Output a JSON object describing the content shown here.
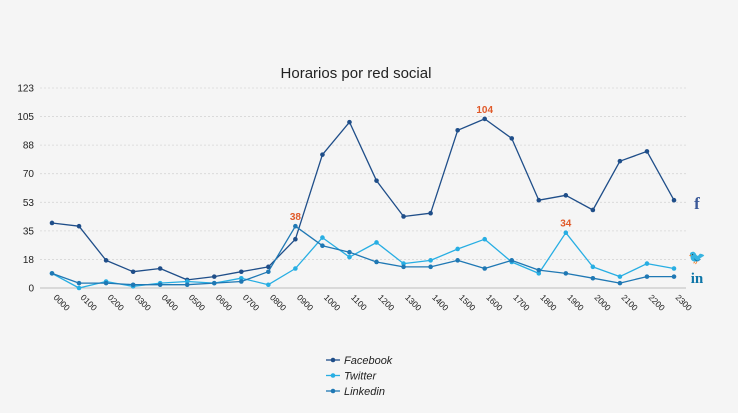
{
  "chart_data": {
    "type": "line",
    "title": "Horarios por red social",
    "xlabel": "",
    "ylabel": "",
    "ylim": [
      0,
      123
    ],
    "y_ticks": [
      "0",
      "18",
      "35",
      "53",
      "70",
      "88",
      "105",
      "123"
    ],
    "y_tick_values": [
      0,
      17.57,
      35.14,
      52.71,
      70.29,
      87.86,
      105.43,
      123
    ],
    "grid": true,
    "legend_position": "bottom",
    "categories": [
      "0:00",
      "01:00",
      "02:00",
      "03:00",
      "04:00",
      "05:00",
      "06:00",
      "07:00",
      "08:00",
      "09:00",
      "10:00",
      "11:00",
      "12:00",
      "13:00",
      "14:00",
      "15:00",
      "16:00",
      "17:00",
      "18:00",
      "19:00",
      "20:00",
      "21:00",
      "22:00",
      "23:00"
    ],
    "category_labels": [
      "0000",
      "0100",
      "0200",
      "0300",
      "0400",
      "0500",
      "0600",
      "0700",
      "0800",
      "0900",
      "1000",
      "1100",
      "1200",
      "1300",
      "1400",
      "1500",
      "1600",
      "1700",
      "1800",
      "1900",
      "2000",
      "2100",
      "2200",
      "2300"
    ],
    "series": [
      {
        "name": "Facebook",
        "color": "#1f4e89",
        "values": [
          40,
          38,
          17,
          10,
          12,
          5,
          7,
          10,
          13,
          30,
          82,
          102,
          66,
          44,
          46,
          97,
          104,
          92,
          54,
          57,
          48,
          78,
          84,
          54
        ]
      },
      {
        "name": "Twitter",
        "color": "#27aee3",
        "values": [
          9,
          0,
          4,
          1,
          3,
          4,
          3,
          6,
          2,
          12,
          31,
          19,
          28,
          15,
          17,
          24,
          30,
          16,
          9,
          34,
          13,
          7,
          15,
          12
        ]
      },
      {
        "name": "Linkedin",
        "color": "#1f78b4",
        "values": [
          9,
          3,
          3,
          2,
          2,
          2,
          3,
          4,
          10,
          38,
          26,
          22,
          16,
          13,
          13,
          17,
          12,
          17,
          11,
          9,
          6,
          3,
          7,
          7
        ]
      }
    ],
    "annotations": [
      {
        "series": "Linkedin",
        "index": 9,
        "label": "38"
      },
      {
        "series": "Facebook",
        "index": 16,
        "label": "104"
      },
      {
        "series": "Twitter",
        "index": 19,
        "label": "34"
      }
    ]
  },
  "social_icons": [
    {
      "name": "facebook-icon",
      "glyph": "f",
      "color": "#3b5998"
    },
    {
      "name": "twitter-icon",
      "glyph": "🐦",
      "color": "#1da1f2"
    },
    {
      "name": "linkedin-icon",
      "glyph": "in",
      "color": "#0e76a8"
    }
  ]
}
